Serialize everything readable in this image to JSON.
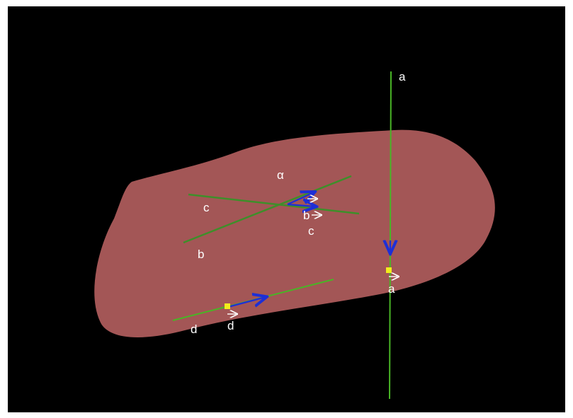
{
  "colors": {
    "background": "#000000",
    "plane": "#a35656",
    "line": "#3e8f2a",
    "line_bright": "#49b526",
    "vector": "#1d2fd6",
    "point": "#f2ec1c",
    "label": "#ffffff"
  },
  "labels": {
    "plane": "α",
    "line_a": "a",
    "line_b": "b",
    "line_c": "c",
    "line_d": "d",
    "vec_a": "a",
    "vec_b": "b",
    "vec_c": "c",
    "vec_d": "d"
  }
}
